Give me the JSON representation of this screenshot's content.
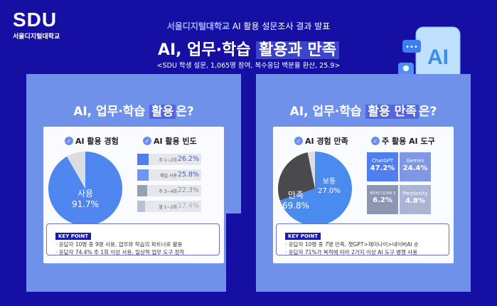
{
  "logo": {
    "brand": "SDU",
    "name": "서울디지털대학교"
  },
  "header": {
    "subtitle_highlight": "서울디지털대학교",
    "subtitle_rest": " AI 활용 설문조사 결과 발표",
    "title_plain": "AI, 업무·학습 ",
    "title_highlight": "활용과 만족",
    "note": "<SDU 학생 설문, 1,065명 참여, 복수응답 백분율 환산, 25.9>"
  },
  "left": {
    "title_a": "AI, 업무·학습 ",
    "title_hl": "활용",
    "title_b": "은?",
    "pie_title": "AI 활용 경험",
    "bar_title": "AI 활용 빈도",
    "pie_label": "사용",
    "pie_value": "91.7%",
    "keypoint": {
      "label": "KEY POINT",
      "lines": [
        "· 응답자 10명 중 9명 사용, 업무와 학습의 파트너로 활용",
        "· 응답자 74.4% 주 1회 이상 사용, 일상적 업무 도구 정착"
      ]
    }
  },
  "right": {
    "title_a": "AI, 업무·학습 ",
    "title_hl": "활용 만족",
    "title_b": "은?",
    "pie_title": "AI 경험 만족",
    "tile_title": "주 활용 AI 도구",
    "keypoint": {
      "label": "KEY POINT",
      "lines": [
        "· 응답자 10명 중 7명 만족, 챗GPT>제미나이>네이버AI 순",
        "· 응답자 71%가 목적에 따라 2가지 이상 AI 도구 병행 사용"
      ]
    }
  },
  "chart_data": [
    {
      "type": "pie",
      "title": "AI 활용 경험",
      "slices": [
        {
          "label": "사용",
          "value": 91.7,
          "color": "#4f86ef"
        },
        {
          "label": "",
          "value": 8.3,
          "color": "#dcdde2"
        }
      ]
    },
    {
      "type": "bar",
      "title": "AI 활용 빈도",
      "categories": [
        "주 1~2회",
        "매일 사용",
        "주 3~4회",
        "월 1~2회"
      ],
      "values": [
        26.2,
        25.8,
        22.3,
        17.4
      ],
      "labels": [
        "26.2%",
        "25.8%",
        "22.3%",
        "17.4%"
      ],
      "colors": [
        "#4f7ef0",
        "#6f95f3",
        "#9aa0b4",
        "#b8c0d8"
      ],
      "value_colors": [
        "#3b63d9",
        "#3b63d9",
        "#8890a5",
        "#a6aec5"
      ]
    },
    {
      "type": "pie",
      "title": "AI 경험 만족",
      "slices": [
        {
          "label": "만족",
          "value": 69.8,
          "display": "69.8%",
          "color": "#4a8bf0"
        },
        {
          "label": "보통",
          "value": 27.0,
          "display": "27.0%",
          "color": "#4a4a4e"
        },
        {
          "label": "",
          "value": 3.2,
          "color": "#dcdde2"
        }
      ]
    },
    {
      "type": "table",
      "title": "주 활용 AI 도구",
      "cells": [
        {
          "name": "ChatGPT",
          "value": "47.2%",
          "color": "#4f7ef0"
        },
        {
          "name": "Gemini",
          "value": "24.4%",
          "color": "#7e98e6"
        },
        {
          "name": "네이버 CLOVA X",
          "value": "6.2%",
          "color": "#8d96b2"
        },
        {
          "name": "Perplexity",
          "value": "4.8%",
          "color": "#aab4d4"
        }
      ]
    }
  ]
}
